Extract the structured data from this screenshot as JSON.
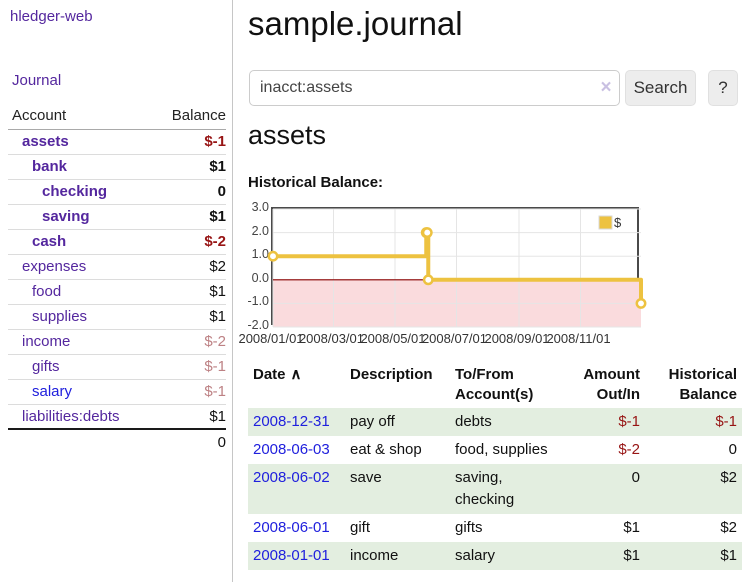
{
  "app": {
    "brand": "hledger-web",
    "nav_journal": "Journal"
  },
  "sidebar": {
    "header": {
      "account": "Account",
      "balance": "Balance"
    },
    "accounts": [
      {
        "name": "assets",
        "indent": 1,
        "bold": true,
        "blue": false,
        "balance": "$-1",
        "balance_class": "negative"
      },
      {
        "name": "bank",
        "indent": 2,
        "bold": true,
        "blue": false,
        "balance": "$1",
        "balance_class": "normal"
      },
      {
        "name": "checking",
        "indent": 3,
        "bold": true,
        "blue": false,
        "balance": "0",
        "balance_class": "normal"
      },
      {
        "name": "saving",
        "indent": 3,
        "bold": true,
        "blue": false,
        "balance": "$1",
        "balance_class": "normal"
      },
      {
        "name": "cash",
        "indent": 2,
        "bold": true,
        "blue": false,
        "balance": "$-2",
        "balance_class": "negative"
      },
      {
        "name": "expenses",
        "indent": 1,
        "bold": false,
        "blue": false,
        "balance": "$2",
        "balance_class": "normal"
      },
      {
        "name": "food",
        "indent": 2,
        "bold": false,
        "blue": false,
        "balance": "$1",
        "balance_class": "normal"
      },
      {
        "name": "supplies",
        "indent": 2,
        "bold": false,
        "blue": false,
        "balance": "$1",
        "balance_class": "normal"
      },
      {
        "name": "income",
        "indent": 1,
        "bold": false,
        "blue": false,
        "balance": "$-2",
        "balance_class": "muted"
      },
      {
        "name": "gifts",
        "indent": 2,
        "bold": false,
        "blue": false,
        "balance": "$-1",
        "balance_class": "muted"
      },
      {
        "name": "salary",
        "indent": 2,
        "bold": false,
        "blue": true,
        "balance": "$-1",
        "balance_class": "muted"
      },
      {
        "name": "liabilities:debts",
        "indent": 1,
        "bold": false,
        "blue": false,
        "balance": "$1",
        "balance_class": "normal"
      }
    ],
    "total": "0"
  },
  "header": {
    "title": "sample.journal"
  },
  "search": {
    "value": "inacct:assets",
    "clear_icon": "×",
    "button_label": "Search",
    "help_label": "?"
  },
  "account_page": {
    "heading": "assets",
    "chart_label": "Historical Balance:"
  },
  "chart_data": {
    "type": "line",
    "step": true,
    "title": "Historical Balance",
    "series": [
      {
        "name": "$",
        "color": "#edc240",
        "points": [
          [
            "2008-01-01",
            1
          ],
          [
            "2008-06-01",
            2
          ],
          [
            "2008-06-02",
            2
          ],
          [
            "2008-06-03",
            0
          ],
          [
            "2008-12-31",
            -1
          ]
        ]
      }
    ],
    "xlim": [
      "2008-01-01",
      "2008-12-31"
    ],
    "ylim": [
      -2,
      3
    ],
    "x_ticks": [
      "2008/01/01",
      "2008/03/01",
      "2008/05/01",
      "2008/07/01",
      "2008/09/01",
      "2008/11/01"
    ],
    "y_ticks": [
      "3.0",
      "2.0",
      "1.0",
      "0.0",
      "-1.0",
      "-2.0"
    ],
    "grid_color": "#e5e5e5",
    "negative_region_color": "#fadbdd",
    "zero_line_color": "#8b0000",
    "marker_fill": "#ffffff",
    "legend": {
      "label": "$",
      "position": "top-right"
    }
  },
  "register": {
    "columns": [
      {
        "label": "Date",
        "sort_icon": "∧",
        "align": "left"
      },
      {
        "label": "Description",
        "align": "left"
      },
      {
        "label": "To/From Account(s)",
        "align": "left"
      },
      {
        "label": "Amount Out/In",
        "align": "right"
      },
      {
        "label": "Historical Balance",
        "align": "right"
      }
    ],
    "rows": [
      {
        "date": "2008-12-31",
        "description": "pay off",
        "accounts": "debts",
        "amount": "$-1",
        "amount_negative": true,
        "balance": "$-1",
        "balance_negative": true,
        "shaded": true
      },
      {
        "date": "2008-06-03",
        "description": "eat & shop",
        "accounts": "food, supplies",
        "amount": "$-2",
        "amount_negative": true,
        "balance": "0",
        "balance_negative": false,
        "shaded": false
      },
      {
        "date": "2008-06-02",
        "description": "save",
        "accounts": "saving, checking",
        "amount": "0",
        "amount_negative": false,
        "balance": "$2",
        "balance_negative": false,
        "shaded": true
      },
      {
        "date": "2008-06-01",
        "description": "gift",
        "accounts": "gifts",
        "amount": "$1",
        "amount_negative": false,
        "balance": "$2",
        "balance_negative": false,
        "shaded": false
      },
      {
        "date": "2008-01-01",
        "description": "income",
        "accounts": "salary",
        "amount": "$1",
        "amount_negative": false,
        "balance": "$1",
        "balance_negative": false,
        "shaded": true
      }
    ]
  }
}
